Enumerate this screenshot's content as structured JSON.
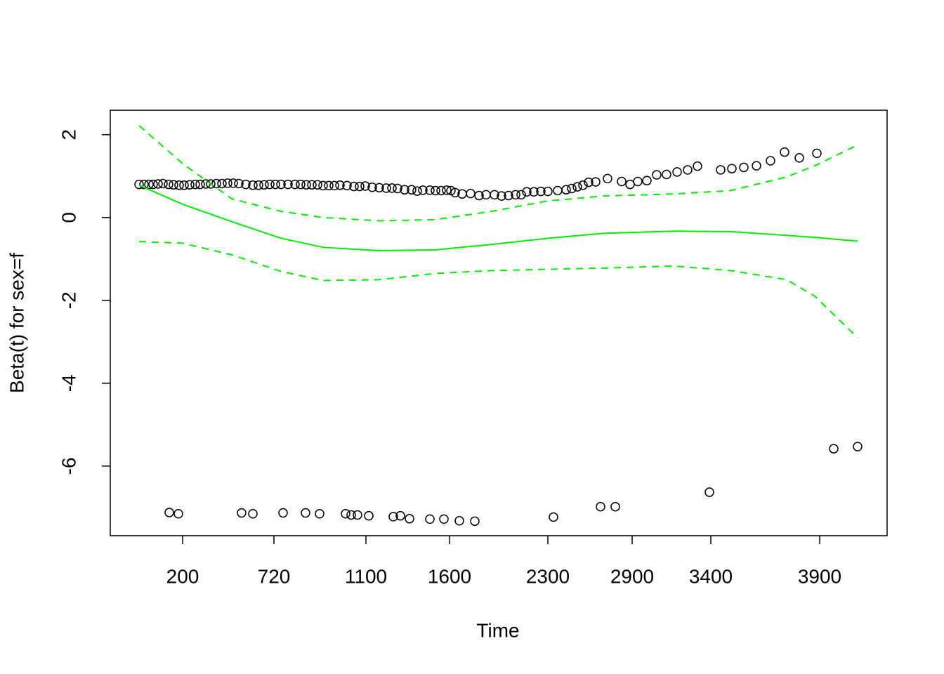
{
  "chart_data": {
    "type": "scatter",
    "x_label": "Time",
    "y_label": "Beta(t) for sex=f",
    "xlim": [
      0,
      1106
    ],
    "ylim": [
      -7.68,
      2.59
    ],
    "xticks": [
      {
        "value": 103,
        "label": "200"
      },
      {
        "value": 233,
        "label": "720"
      },
      {
        "value": 364,
        "label": "1100"
      },
      {
        "value": 483,
        "label": "1600"
      },
      {
        "value": 623,
        "label": "2300"
      },
      {
        "value": 743,
        "label": "2900"
      },
      {
        "value": 855,
        "label": "3400"
      },
      {
        "value": 1010,
        "label": "3900"
      }
    ],
    "yticks": [
      -6,
      -4,
      -2,
      0,
      2
    ],
    "series": [
      {
        "type": "scatter",
        "color": "#000000",
        "x": [
          41,
          48,
          55,
          61,
          68,
          75,
          83,
          90,
          98,
          105,
          113,
          121,
          128,
          136,
          143,
          151,
          159,
          167,
          175,
          183,
          193,
          203,
          211,
          219,
          227,
          235,
          243,
          253,
          263,
          271,
          279,
          287,
          295,
          303,
          311,
          319,
          327,
          337,
          347,
          355,
          363,
          373,
          383,
          393,
          401,
          409,
          419,
          429,
          437,
          445,
          455,
          463,
          471,
          479,
          485,
          491,
          501,
          513,
          525,
          535,
          547,
          557,
          567,
          577,
          585,
          593,
          603,
          613,
          623,
          637,
          649,
          657,
          665,
          673,
          681,
          691,
          708,
          728,
          740,
          751,
          764,
          778,
          792,
          807,
          822,
          836,
          869,
          885,
          902,
          920,
          940,
          960,
          981,
          1006,
          1030,
          1064,
          84,
          97,
          187,
          203,
          246,
          278,
          298,
          335,
          343,
          352,
          368,
          403,
          413,
          426,
          455,
          475,
          497,
          519,
          631,
          698,
          719,
          853
        ],
        "values": [
          0.8,
          0.8,
          0.8,
          0.8,
          0.81,
          0.82,
          0.8,
          0.79,
          0.78,
          0.78,
          0.79,
          0.8,
          0.8,
          0.81,
          0.81,
          0.82,
          0.82,
          0.83,
          0.83,
          0.82,
          0.8,
          0.78,
          0.78,
          0.79,
          0.8,
          0.8,
          0.8,
          0.8,
          0.8,
          0.8,
          0.79,
          0.79,
          0.79,
          0.77,
          0.77,
          0.77,
          0.78,
          0.77,
          0.75,
          0.75,
          0.76,
          0.73,
          0.72,
          0.71,
          0.71,
          0.7,
          0.67,
          0.67,
          0.64,
          0.66,
          0.66,
          0.65,
          0.65,
          0.66,
          0.65,
          0.6,
          0.57,
          0.58,
          0.53,
          0.55,
          0.55,
          0.52,
          0.53,
          0.55,
          0.55,
          0.62,
          0.62,
          0.63,
          0.63,
          0.65,
          0.67,
          0.7,
          0.74,
          0.78,
          0.85,
          0.86,
          0.94,
          0.87,
          0.8,
          0.87,
          0.89,
          1.03,
          1.04,
          1.1,
          1.15,
          1.24,
          1.15,
          1.18,
          1.21,
          1.25,
          1.37,
          1.58,
          1.44,
          1.55,
          -5.58,
          -5.53,
          -7.12,
          -7.15,
          -7.13,
          -7.15,
          -7.13,
          -7.13,
          -7.15,
          -7.15,
          -7.18,
          -7.18,
          -7.2,
          -7.22,
          -7.2,
          -7.27,
          -7.28,
          -7.28,
          -7.32,
          -7.33,
          -7.23,
          -6.98,
          -6.98,
          -6.63
        ]
      },
      {
        "type": "line",
        "color": "#00ee00",
        "linestyle": "solid",
        "x": [
          41,
          103,
          173,
          243,
          303,
          383,
          463,
          543,
          623,
          703,
          803,
          883,
          963,
          1003,
          1064
        ],
        "values": [
          0.78,
          0.32,
          -0.1,
          -0.5,
          -0.72,
          -0.8,
          -0.78,
          -0.65,
          -0.5,
          -0.38,
          -0.33,
          -0.34,
          -0.43,
          -0.48,
          -0.57
        ]
      },
      {
        "type": "line",
        "color": "#00ee00",
        "linestyle": "dashed",
        "x": [
          41,
          103,
          173,
          243,
          303,
          383,
          463,
          543,
          623,
          703,
          803,
          883,
          963,
          1003,
          1064
        ],
        "values": [
          2.22,
          1.3,
          0.45,
          0.15,
          0.0,
          -0.08,
          -0.05,
          0.15,
          0.4,
          0.52,
          0.57,
          0.65,
          0.98,
          1.25,
          1.75
        ]
      },
      {
        "type": "line",
        "color": "#00ee00",
        "linestyle": "dashed",
        "x": [
          41,
          103,
          173,
          243,
          303,
          383,
          463,
          543,
          623,
          703,
          803,
          883,
          963,
          1003,
          1064
        ],
        "values": [
          -0.58,
          -0.62,
          -0.9,
          -1.3,
          -1.52,
          -1.5,
          -1.35,
          -1.28,
          -1.25,
          -1.22,
          -1.17,
          -1.28,
          -1.5,
          -1.9,
          -2.9
        ]
      }
    ]
  }
}
